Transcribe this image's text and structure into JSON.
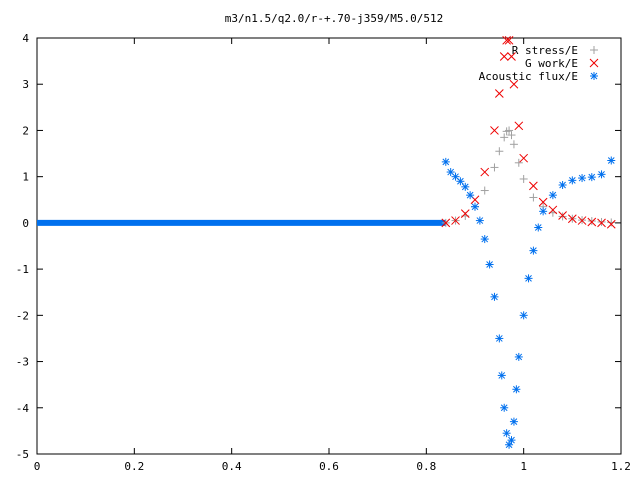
{
  "chart_data": {
    "type": "scatter",
    "title": "m3/n1.5/q2.0/r-+.70-j359/M5.0/512",
    "xlabel": "",
    "ylabel": "",
    "xlim": [
      0,
      1.2
    ],
    "ylim": [
      -5,
      4
    ],
    "xticks": [
      0,
      0.2,
      0.4,
      0.6,
      0.8,
      1,
      1.2
    ],
    "xtick_labels": [
      "0",
      "0.2",
      "0.4",
      "0.6",
      "0.8",
      "1",
      "1.2"
    ],
    "yticks": [
      -5,
      -4,
      -3,
      -2,
      -1,
      0,
      1,
      2,
      3,
      4
    ],
    "ytick_labels": [
      "-5",
      "-4",
      "-3",
      "-2",
      "-1",
      "0",
      "1",
      "2",
      "3",
      "4"
    ],
    "grid": false,
    "legend_position": "top-right",
    "series": [
      {
        "name": "R stress/E",
        "marker": "plus",
        "color": "#a0a0a0",
        "x": [
          0.84,
          0.86,
          0.88,
          0.9,
          0.92,
          0.94,
          0.95,
          0.96,
          0.965,
          0.97,
          0.975,
          0.98,
          0.99,
          1.0,
          1.02,
          1.04,
          1.06,
          1.08,
          1.1,
          1.12,
          1.14,
          1.16,
          1.18
        ],
        "y": [
          0.0,
          0.05,
          0.15,
          0.35,
          0.7,
          1.2,
          1.55,
          1.85,
          1.98,
          2.0,
          1.9,
          1.7,
          1.3,
          0.95,
          0.55,
          0.35,
          0.22,
          0.14,
          0.09,
          0.06,
          0.04,
          0.02,
          0.01
        ]
      },
      {
        "name": "G work/E",
        "marker": "cross",
        "color": "#ee0000",
        "x": [
          0.84,
          0.86,
          0.88,
          0.9,
          0.92,
          0.94,
          0.95,
          0.96,
          0.965,
          0.97,
          0.975,
          0.98,
          0.99,
          1.0,
          1.02,
          1.04,
          1.06,
          1.08,
          1.1,
          1.12,
          1.14,
          1.16,
          1.18
        ],
        "y": [
          0.0,
          0.05,
          0.2,
          0.5,
          1.1,
          2.0,
          2.8,
          3.6,
          3.95,
          3.95,
          3.6,
          3.0,
          2.1,
          1.4,
          0.8,
          0.45,
          0.28,
          0.16,
          0.09,
          0.05,
          0.02,
          0.0,
          -0.03
        ]
      },
      {
        "name": "Acoustic flux/E",
        "marker": "star",
        "color": "#0070ee",
        "x": [
          0.84,
          0.85,
          0.86,
          0.87,
          0.88,
          0.89,
          0.9,
          0.91,
          0.92,
          0.93,
          0.94,
          0.95,
          0.955,
          0.96,
          0.965,
          0.97,
          0.975,
          0.98,
          0.985,
          0.99,
          1.0,
          1.01,
          1.02,
          1.03,
          1.04,
          1.06,
          1.08,
          1.1,
          1.12,
          1.14,
          1.16,
          1.18
        ],
        "y": [
          1.32,
          1.1,
          1.0,
          0.9,
          0.78,
          0.6,
          0.35,
          0.05,
          -0.35,
          -0.9,
          -1.6,
          -2.5,
          -3.3,
          -4.0,
          -4.55,
          -4.8,
          -4.7,
          -4.3,
          -3.6,
          -2.9,
          -2.0,
          -1.2,
          -0.6,
          -0.1,
          0.25,
          0.6,
          0.82,
          0.92,
          0.97,
          0.99,
          1.05,
          1.35
        ]
      }
    ]
  }
}
